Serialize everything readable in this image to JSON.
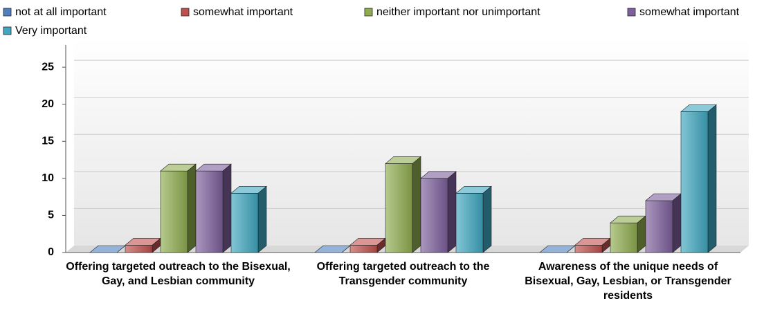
{
  "chart_data": {
    "type": "bar3d",
    "categories": [
      "Offering targeted outreach to the Bisexual, Gay, and Lesbian community",
      "Offering targeted outreach to the Transgender community",
      "Awareness of the unique needs of Bisexual, Gay, Lesbian, or Transgender residents"
    ],
    "series": [
      {
        "name": "not at all important",
        "color": "#4f7fbf",
        "values": [
          0,
          0,
          0
        ]
      },
      {
        "name": "somewhat important",
        "color": "#c0504d",
        "values": [
          1,
          1,
          1
        ]
      },
      {
        "name": "neither important nor unimportant",
        "color": "#8fad4f",
        "values": [
          11,
          12,
          4
        ]
      },
      {
        "name": "somewhat important",
        "color": "#7d5f9d",
        "values": [
          11,
          10,
          7
        ]
      },
      {
        "name": "Very important",
        "color": "#3fa7c0",
        "values": [
          8,
          8,
          19
        ]
      }
    ],
    "ylim": [
      0,
      28
    ],
    "yticks": [
      0,
      5,
      10,
      15,
      20,
      25
    ],
    "grid": true
  }
}
